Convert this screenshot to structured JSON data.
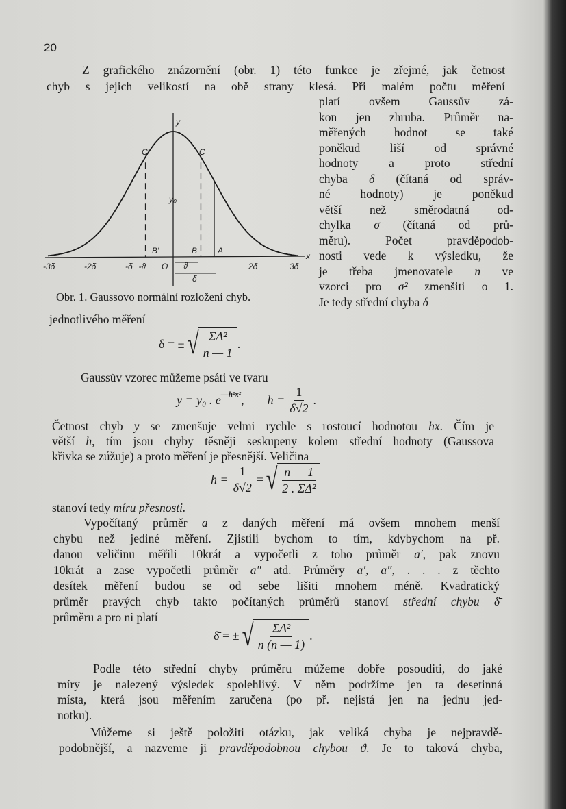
{
  "page_number": "20",
  "figure": {
    "caption": "Obr. 1. Gaussovo normální rozložení chyb.",
    "labels": {
      "y": "y",
      "x": "x",
      "y0": "y₀",
      "C_prime": "C′",
      "C": "C",
      "B_prime": "B′",
      "B": "B",
      "A": "A",
      "O": "O",
      "theta": "ϑ",
      "delta": "δ"
    },
    "x_ticks": [
      "-3δ",
      "-2δ",
      "-δ",
      "-ϑ",
      "2δ",
      "3δ"
    ]
  },
  "para1_lines": [
    [
      {
        "t": "Z grafického znázornění (obr. 1) této funkce je zřejmé, jak četnost"
      }
    ],
    [
      {
        "t": "chyb s jejich velikostí na obě strany klesá. Při malém počtu měření"
      }
    ]
  ],
  "column_lines": [
    [
      {
        "t": "platí ovšem Gaussův zá-"
      }
    ],
    [
      {
        "t": "kon jen zhruba. Průměr na-"
      }
    ],
    [
      {
        "t": "měřených hodnot se také"
      }
    ],
    [
      {
        "t": "poněkud liší od správné"
      }
    ],
    [
      {
        "t": "hodnoty a proto střední"
      }
    ],
    [
      {
        "t": "chyba "
      },
      {
        "t": "δ",
        "i": true
      },
      {
        "t": " (čítaná od správ-"
      }
    ],
    [
      {
        "t": "né hodnoty) je poněkud"
      }
    ],
    [
      {
        "t": "větší než směrodatná od-"
      }
    ],
    [
      {
        "t": "chylka "
      },
      {
        "t": "σ",
        "i": true
      },
      {
        "t": " (čítaná od prů-"
      }
    ],
    [
      {
        "t": "měru). Počet pravděpodob-"
      }
    ],
    [
      {
        "t": "nosti vede k výsledku, že"
      }
    ],
    [
      {
        "t": "je třeba jmenovatele "
      },
      {
        "t": "n",
        "i": true
      },
      {
        "t": " ve"
      }
    ],
    [
      {
        "t": "vzorci pro "
      },
      {
        "t": "σ²",
        "i": true
      },
      {
        "t": " zmenšiti o 1."
      }
    ],
    [
      {
        "t": "Je tedy střední chyba "
      },
      {
        "t": "δ",
        "i": true
      }
    ]
  ],
  "line_single": [
    {
      "t": "jednotlivého měření"
    }
  ],
  "formula1": {
    "lhs": "δ = ±",
    "num": "ΣΔ²",
    "den": "n — 1",
    "end": "."
  },
  "line_gauss": [
    {
      "t": "Gaussův vzorec můžeme psáti ve tvaru"
    }
  ],
  "formula2": {
    "lhs": "y = y₀ . e",
    "exp": "—h²x²",
    "sep": ",",
    "h": "h =",
    "num": "1",
    "den": "δ√2",
    "end": "."
  },
  "para2_lines": [
    [
      {
        "t": "Četnost chyb "
      },
      {
        "t": "y",
        "i": true
      },
      {
        "t": " se zmenšuje velmi rychle s rostoucí hodnotou "
      },
      {
        "t": "hx",
        "i": true
      },
      {
        "t": ". Čím je"
      }
    ],
    [
      {
        "t": "větší "
      },
      {
        "t": "h",
        "i": true
      },
      {
        "t": ", tím jsou chyby těsněji seskupeny kolem střední hodnoty (Gaussova"
      }
    ],
    [
      {
        "t": "křivka se zúžuje) a proto měření je přesnější. Veličina"
      }
    ]
  ],
  "formula3": {
    "lhs": "h =",
    "num1": "1",
    "den1": "δ√2",
    "eq": "=",
    "num2": "n — 1",
    "den2": "2 . ΣΔ²"
  },
  "line_precision": [
    {
      "t": "stanoví tedy "
    },
    {
      "t": "míru přesnosti.",
      "i": true
    }
  ],
  "para3_lines": [
    [
      {
        "t": "Vypočítaný průměr "
      },
      {
        "t": "a",
        "i": true
      },
      {
        "t": " z daných měření má ovšem mnohem menší"
      }
    ],
    [
      {
        "t": "chybu než jediné měření. Zjistili bychom to tím, kdybychom na př."
      }
    ],
    [
      {
        "t": "danou veličinu měřili 10krát a vypočetli z toho průměr "
      },
      {
        "t": "a′",
        "i": true
      },
      {
        "t": ", pak znovu"
      }
    ],
    [
      {
        "t": "10krát a zase vypočetli průměr "
      },
      {
        "t": "a″",
        "i": true
      },
      {
        "t": " atd. Průměry "
      },
      {
        "t": "a′, a″",
        "i": true
      },
      {
        "t": ", . . . z těchto"
      }
    ],
    [
      {
        "t": "desítek měření budou se od sebe lišiti mnohem méně. Kvadratický"
      }
    ],
    [
      {
        "t": "průměr pravých chyb takto počítaných průměrů stanoví "
      },
      {
        "t": "střední chybu δ̄",
        "i": true
      }
    ],
    [
      {
        "t": "průměru a pro ni platí"
      }
    ]
  ],
  "formula4": {
    "lhs": "δ̄ = ±",
    "num": "ΣΔ²",
    "den": "n (n — 1)",
    "end": "."
  },
  "para4_lines": [
    [
      {
        "t": "Podle této střední chyby průměru můžeme dobře posouditi, do jaké"
      }
    ],
    [
      {
        "t": "míry je nalezený výsledek spolehlivý. V něm podržíme jen ta desetinná"
      }
    ],
    [
      {
        "t": "místa, která jsou měřením zaručena (po př. nejistá jen na jednu jed-"
      }
    ],
    [
      {
        "t": "notku)."
      }
    ]
  ],
  "para5_lines": [
    [
      {
        "t": "Můžeme si ještě položiti otázku, jak veliká chyba je nejpravdě-"
      }
    ],
    [
      {
        "t": "podobnější, a nazveme ji "
      },
      {
        "t": "pravděpodobnou chybou ϑ",
        "i": true
      },
      {
        "t": ". Je to taková chyba,"
      }
    ]
  ]
}
